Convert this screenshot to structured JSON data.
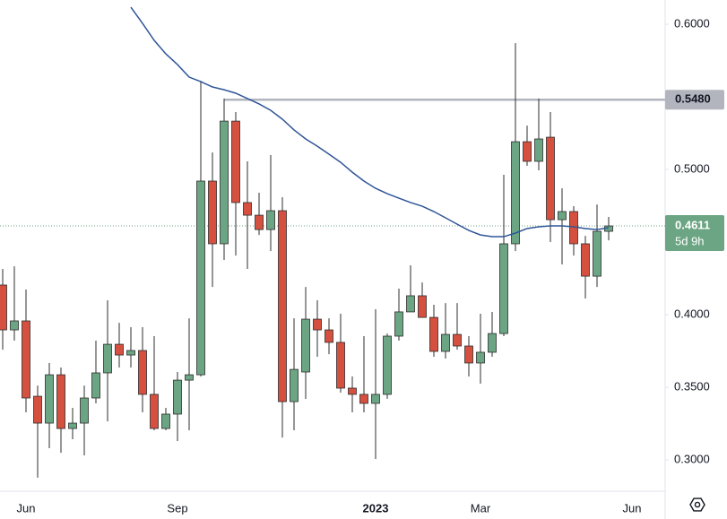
{
  "chart_data": {
    "type": "candlestick",
    "up_color": "#6ba583",
    "down_color": "#d5503f",
    "border_color": "#2d2d2d",
    "ylim": [
      0.2784,
      0.6167
    ],
    "yticks": [
      {
        "value": 0.3,
        "label": "0.3000"
      },
      {
        "value": 0.35,
        "label": "0.3500"
      },
      {
        "value": 0.4,
        "label": "0.4000"
      },
      {
        "value": 0.5,
        "label": "0.5000"
      },
      {
        "value": 0.6,
        "label": "0.6000"
      }
    ],
    "categories": [
      null,
      null,
      "Jun",
      null,
      null,
      null,
      null,
      null,
      null,
      null,
      null,
      null,
      null,
      null,
      null,
      "Sep",
      null,
      null,
      null,
      null,
      null,
      null,
      null,
      null,
      null,
      null,
      null,
      null,
      null,
      null,
      null,
      null,
      "2023",
      null,
      null,
      null,
      null,
      null,
      null,
      null,
      null,
      "Mar",
      null,
      null,
      null,
      null,
      null,
      null,
      null,
      null,
      null,
      null,
      null,
      null,
      "Jun"
    ],
    "open": [
      0.4204,
      0.3895,
      0.3957,
      0.3438,
      0.3253,
      0.3586,
      0.3216,
      0.3253,
      0.3426,
      0.3599,
      0.3796,
      0.3722,
      0.3753,
      0.3451,
      0.3216,
      0.3315,
      0.3549,
      0.3586,
      0.492,
      0.4488,
      0.5333,
      0.4772,
      0.4685,
      0.4586,
      0.4716,
      0.3401,
      0.3605,
      0.3969,
      0.3895,
      0.3809,
      0.3494,
      0.3451,
      0.3389,
      0.3451,
      0.3852,
      0.4019,
      0.413,
      0.3981,
      0.3747,
      0.3864,
      0.3784,
      0.3667,
      0.3741,
      0.387,
      0.4488,
      0.5191,
      0.5056,
      0.5222,
      0.4654,
      0.471,
      0.4488,
      0.4265,
      0.4574,
      null,
      null
    ],
    "high": [
      0.4315,
      0.4333,
      0.4173,
      0.3512,
      0.3667,
      0.3636,
      0.3358,
      0.3512,
      0.3821,
      0.4099,
      0.3944,
      0.3914,
      0.3914,
      0.3852,
      0.3358,
      0.3605,
      0.3975,
      0.5611,
      0.5117,
      0.5488,
      0.5395,
      0.5056,
      0.484,
      0.5099,
      0.4809,
      0.3975,
      0.4191,
      0.4099,
      0.3975,
      0.4006,
      0.3574,
      0.3852,
      0.4037,
      0.387,
      0.4179,
      0.434,
      0.4222,
      0.4068,
      0.408,
      0.408,
      0.3852,
      0.4006,
      0.4019,
      0.4963,
      0.587,
      0.5302,
      0.5488,
      0.5395,
      0.487,
      0.4747,
      0.4543,
      0.4759,
      0.4673,
      null,
      null
    ],
    "low": [
      0.3759,
      0.3821,
      0.3327,
      0.2877,
      0.308,
      0.3049,
      0.3142,
      0.3031,
      0.3389,
      0.3265,
      0.3636,
      0.3636,
      0.3327,
      0.3204,
      0.3204,
      0.313,
      0.3204,
      0.3574,
      0.4191,
      0.4377,
      0.4407,
      0.4315,
      0.4549,
      0.4438,
      0.3154,
      0.3204,
      0.342,
      0.371,
      0.3728,
      0.3463,
      0.3327,
      0.3327,
      0.3006,
      0.342,
      0.3821,
      0.4019,
      0.3981,
      0.371,
      0.3698,
      0.3759,
      0.3574,
      0.3525,
      0.371,
      0.3852,
      0.4438,
      0.5025,
      0.4994,
      0.45,
      0.4346,
      0.4407,
      0.4111,
      0.4191,
      0.4512,
      null,
      null
    ],
    "close": [
      0.3895,
      0.3957,
      0.3426,
      0.3253,
      0.3586,
      0.3216,
      0.3253,
      0.3426,
      0.3599,
      0.3796,
      0.3722,
      0.3753,
      0.3451,
      0.3216,
      0.3315,
      0.3549,
      0.3586,
      0.492,
      0.4488,
      0.5333,
      0.4772,
      0.4685,
      0.4586,
      0.4716,
      0.3401,
      0.3623,
      0.3969,
      0.3895,
      0.3809,
      0.3494,
      0.3451,
      0.3389,
      0.3451,
      0.3852,
      0.4019,
      0.413,
      0.3981,
      0.3747,
      0.3864,
      0.3784,
      0.3667,
      0.3741,
      0.387,
      0.4488,
      0.5191,
      0.5056,
      0.521,
      0.4654,
      0.471,
      0.4488,
      0.4265,
      0.4574,
      0.4611,
      null,
      null
    ],
    "moving_average": {
      "color": "#2f5597",
      "values": [
        null,
        null,
        null,
        null,
        null,
        null,
        null,
        null,
        null,
        null,
        null,
        0.6117,
        0.6006,
        0.5889,
        0.5796,
        0.5722,
        0.5636,
        0.5605,
        0.5568,
        0.5549,
        0.5525,
        0.5488,
        0.5451,
        0.5407,
        0.5346,
        0.5272,
        0.521,
        0.516,
        0.5105,
        0.5049,
        0.4981,
        0.492,
        0.487,
        0.4833,
        0.4802,
        0.4772,
        0.4747,
        0.471,
        0.4667,
        0.4623,
        0.458,
        0.4549,
        0.4537,
        0.4537,
        0.4562,
        0.4593,
        0.4605,
        0.4611,
        0.4611,
        0.4605,
        0.4593,
        0.4586,
        0.4599,
        null,
        null
      ]
    },
    "horizontal_line": {
      "value": 0.548,
      "label": "0.5480",
      "color": "#b2b5be"
    },
    "last_price": {
      "color": "#6ba583",
      "countdown": "5d 9h"
    }
  }
}
